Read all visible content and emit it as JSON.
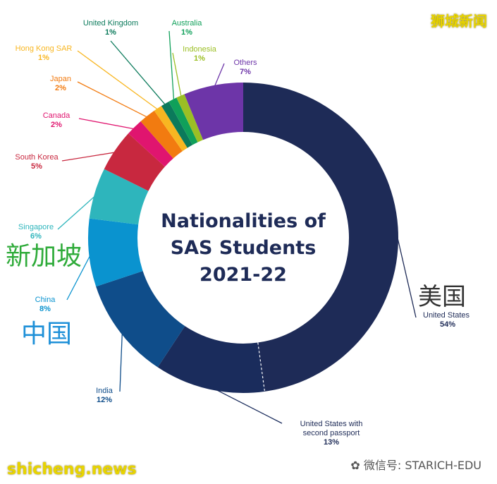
{
  "chart_data": {
    "type": "pie",
    "title": [
      "Nationalities of",
      "SAS Students",
      "2021-22"
    ],
    "slices": [
      {
        "name": "United States",
        "value": 54,
        "label": "54%",
        "color": "#1e2b57"
      },
      {
        "name": "United States with second passport",
        "label_lines": [
          "United States with",
          "second passport"
        ],
        "value": 13,
        "label": "13%",
        "color": "#1a2c5c"
      },
      {
        "name": "India",
        "value": 12,
        "label": "12%",
        "color": "#0f4d8a"
      },
      {
        "name": "China",
        "value": 8,
        "label": "8%",
        "color": "#0a93cf"
      },
      {
        "name": "Singapore",
        "value": 6,
        "label": "6%",
        "color": "#2eb5bc"
      },
      {
        "name": "South Korea",
        "value": 5,
        "label": "5%",
        "color": "#c8283f"
      },
      {
        "name": "Canada",
        "value": 2,
        "label": "2%",
        "color": "#e0156f"
      },
      {
        "name": "Japan",
        "value": 2,
        "label": "2%",
        "color": "#f27b10"
      },
      {
        "name": "Hong Kong SAR",
        "value": 1,
        "label": "1%",
        "color": "#f8b621"
      },
      {
        "name": "United Kingdom",
        "value": 1,
        "label": "1%",
        "color": "#0b7a5b"
      },
      {
        "name": "Australia",
        "value": 1,
        "label": "1%",
        "color": "#10a05a"
      },
      {
        "name": "Indonesia",
        "value": 1,
        "label": "1%",
        "color": "#9bbf24"
      },
      {
        "name": "Others",
        "value": 7,
        "label": "7%",
        "color": "#6d35a8"
      }
    ]
  },
  "overlay_labels": {
    "usa_cn": "美国",
    "singapore_cn": "新加坡",
    "china_cn": "中国"
  },
  "watermarks": {
    "top_right": "狮城新闻",
    "bottom_left": "shicheng.news",
    "wechat": "微信号: STARICH-EDU"
  },
  "colors": {
    "usa_cn": "#333333",
    "singapore_cn": "#2fab3a",
    "china_cn": "#1e90d8"
  }
}
